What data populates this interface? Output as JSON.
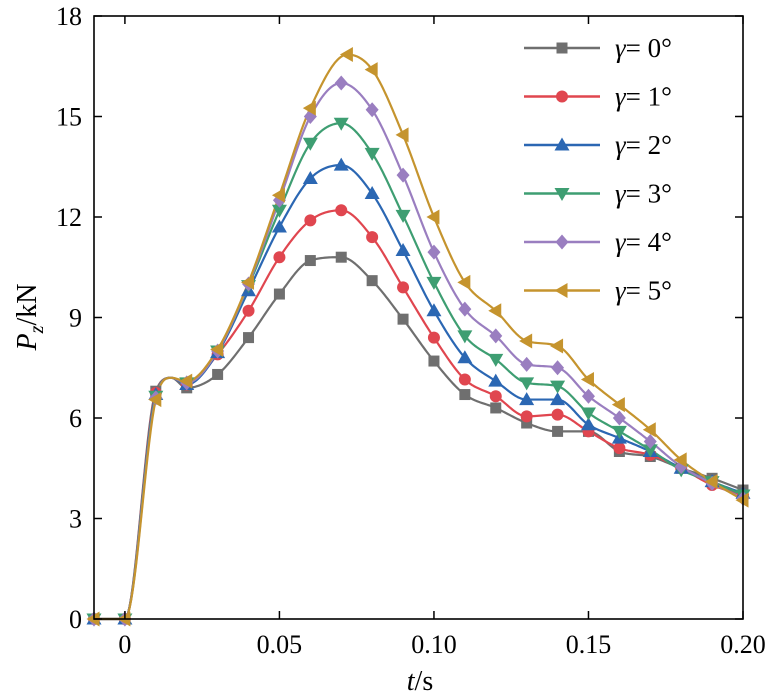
{
  "chart_data": {
    "type": "line",
    "title": "",
    "xlabel_var": "t",
    "xlabel_unit": "/s",
    "ylabel_var": "P",
    "ylabel_sub": "z",
    "ylabel_unit": "/kN",
    "xlim": [
      -0.01,
      0.2
    ],
    "ylim": [
      0,
      18
    ],
    "xticks": [
      0,
      0.05,
      0.1,
      0.15,
      0.2
    ],
    "xtick_labels": [
      "0",
      "0.05",
      "0.10",
      "0.15",
      "0.20"
    ],
    "yticks": [
      0,
      3,
      6,
      9,
      12,
      15,
      18
    ],
    "ytick_labels": [
      "0",
      "3",
      "6",
      "9",
      "12",
      "15",
      "18"
    ],
    "grid": false,
    "legend_position": "top-right",
    "series": [
      {
        "name": "γ= 0°",
        "greek": "γ",
        "rest": "= 0°",
        "color": "#6f6f6f",
        "marker": "square",
        "x": [
          -0.01,
          0.0,
          0.01,
          0.015,
          0.02,
          0.03,
          0.04,
          0.05,
          0.06,
          0.07,
          0.08,
          0.09,
          0.1,
          0.11,
          0.12,
          0.13,
          0.14,
          0.15,
          0.16,
          0.17,
          0.18,
          0.19,
          0.2
        ],
        "y": [
          0,
          0,
          6.8,
          7.2,
          6.9,
          7.3,
          8.4,
          9.7,
          10.7,
          10.8,
          10.1,
          8.95,
          7.7,
          6.7,
          6.3,
          5.85,
          5.6,
          5.6,
          5.0,
          4.85,
          4.5,
          4.2,
          3.85
        ],
        "markers_x": [
          -0.01,
          0.0,
          0.01,
          0.02,
          0.03,
          0.04,
          0.05,
          0.06,
          0.07,
          0.08,
          0.09,
          0.1,
          0.11,
          0.12,
          0.13,
          0.14,
          0.15,
          0.16,
          0.17,
          0.18,
          0.19,
          0.2
        ]
      },
      {
        "name": "γ= 1°",
        "greek": "γ",
        "rest": "= 1°",
        "color": "#e0464f",
        "marker": "circle",
        "x": [
          -0.01,
          0.0,
          0.01,
          0.015,
          0.02,
          0.03,
          0.04,
          0.05,
          0.06,
          0.07,
          0.08,
          0.09,
          0.1,
          0.11,
          0.12,
          0.13,
          0.14,
          0.15,
          0.16,
          0.17,
          0.18,
          0.19,
          0.2
        ],
        "y": [
          0,
          0,
          6.75,
          7.2,
          7.0,
          7.9,
          9.2,
          10.8,
          11.9,
          12.2,
          11.4,
          9.9,
          8.4,
          7.15,
          6.65,
          6.05,
          6.1,
          5.6,
          5.1,
          4.9,
          4.5,
          4.0,
          3.7
        ],
        "markers_x": [
          -0.01,
          0.0,
          0.01,
          0.02,
          0.03,
          0.04,
          0.05,
          0.06,
          0.07,
          0.08,
          0.09,
          0.1,
          0.11,
          0.12,
          0.13,
          0.14,
          0.15,
          0.16,
          0.17,
          0.18,
          0.19,
          0.2
        ]
      },
      {
        "name": "γ= 2°",
        "greek": "γ",
        "rest": "= 2°",
        "color": "#2b67b3",
        "marker": "triangle-up",
        "x": [
          -0.01,
          0.0,
          0.01,
          0.015,
          0.02,
          0.03,
          0.04,
          0.05,
          0.06,
          0.07,
          0.08,
          0.09,
          0.1,
          0.11,
          0.12,
          0.13,
          0.14,
          0.15,
          0.16,
          0.17,
          0.18,
          0.19,
          0.2
        ],
        "y": [
          0,
          0,
          6.7,
          7.2,
          7.0,
          7.95,
          9.8,
          11.7,
          13.15,
          13.55,
          12.7,
          11.0,
          9.2,
          7.8,
          7.1,
          6.55,
          6.55,
          5.8,
          5.4,
          5.0,
          4.5,
          4.1,
          3.75
        ],
        "markers_x": [
          -0.01,
          0.0,
          0.01,
          0.02,
          0.03,
          0.04,
          0.05,
          0.06,
          0.07,
          0.08,
          0.09,
          0.1,
          0.11,
          0.12,
          0.13,
          0.14,
          0.15,
          0.16,
          0.17,
          0.18,
          0.19,
          0.2
        ]
      },
      {
        "name": "γ= 3°",
        "greek": "γ",
        "rest": "= 3°",
        "color": "#3e9e72",
        "marker": "triangle-down",
        "x": [
          -0.01,
          0.0,
          0.01,
          0.015,
          0.02,
          0.03,
          0.04,
          0.05,
          0.06,
          0.07,
          0.08,
          0.09,
          0.1,
          0.11,
          0.12,
          0.13,
          0.14,
          0.15,
          0.16,
          0.17,
          0.18,
          0.19,
          0.2
        ],
        "y": [
          0,
          0,
          6.65,
          7.2,
          7.05,
          8.0,
          9.95,
          12.2,
          14.2,
          14.8,
          13.9,
          12.05,
          10.05,
          8.45,
          7.75,
          7.05,
          6.95,
          6.15,
          5.6,
          5.05,
          4.45,
          4.1,
          3.7
        ],
        "markers_x": [
          -0.01,
          0.0,
          0.01,
          0.02,
          0.03,
          0.04,
          0.05,
          0.06,
          0.07,
          0.08,
          0.09,
          0.1,
          0.11,
          0.12,
          0.13,
          0.14,
          0.15,
          0.16,
          0.17,
          0.18,
          0.19,
          0.2
        ]
      },
      {
        "name": "γ= 4°",
        "greek": "γ",
        "rest": "= 4°",
        "color": "#9a7ec0",
        "marker": "diamond",
        "x": [
          -0.01,
          0.0,
          0.01,
          0.015,
          0.02,
          0.03,
          0.04,
          0.05,
          0.06,
          0.07,
          0.08,
          0.09,
          0.1,
          0.11,
          0.12,
          0.13,
          0.14,
          0.15,
          0.16,
          0.17,
          0.18,
          0.19,
          0.2
        ],
        "y": [
          0,
          0,
          6.6,
          7.2,
          7.05,
          8.0,
          10.0,
          12.5,
          15.0,
          16.0,
          15.2,
          13.25,
          10.95,
          9.25,
          8.45,
          7.6,
          7.5,
          6.65,
          6.0,
          5.3,
          4.55,
          4.05,
          3.6
        ],
        "markers_x": [
          -0.01,
          0.0,
          0.01,
          0.02,
          0.03,
          0.04,
          0.05,
          0.06,
          0.07,
          0.08,
          0.09,
          0.1,
          0.11,
          0.12,
          0.13,
          0.14,
          0.15,
          0.16,
          0.17,
          0.18,
          0.19,
          0.2
        ]
      },
      {
        "name": "γ= 5°",
        "greek": "γ",
        "rest": "= 5°",
        "color": "#c5942e",
        "marker": "triangle-left",
        "x": [
          -0.01,
          0.0,
          0.01,
          0.015,
          0.02,
          0.03,
          0.04,
          0.05,
          0.06,
          0.072,
          0.08,
          0.09,
          0.1,
          0.11,
          0.12,
          0.13,
          0.14,
          0.15,
          0.16,
          0.17,
          0.18,
          0.19,
          0.2
        ],
        "y": [
          0,
          0,
          6.55,
          7.2,
          7.1,
          8.05,
          10.05,
          12.65,
          15.25,
          16.85,
          16.4,
          14.45,
          12.0,
          10.05,
          9.2,
          8.3,
          8.15,
          7.15,
          6.4,
          5.65,
          4.75,
          4.1,
          3.55
        ],
        "markers_x": [
          -0.01,
          0.0,
          0.01,
          0.02,
          0.03,
          0.04,
          0.05,
          0.06,
          0.072,
          0.08,
          0.09,
          0.1,
          0.11,
          0.12,
          0.13,
          0.14,
          0.15,
          0.16,
          0.17,
          0.18,
          0.19,
          0.2
        ]
      }
    ]
  }
}
